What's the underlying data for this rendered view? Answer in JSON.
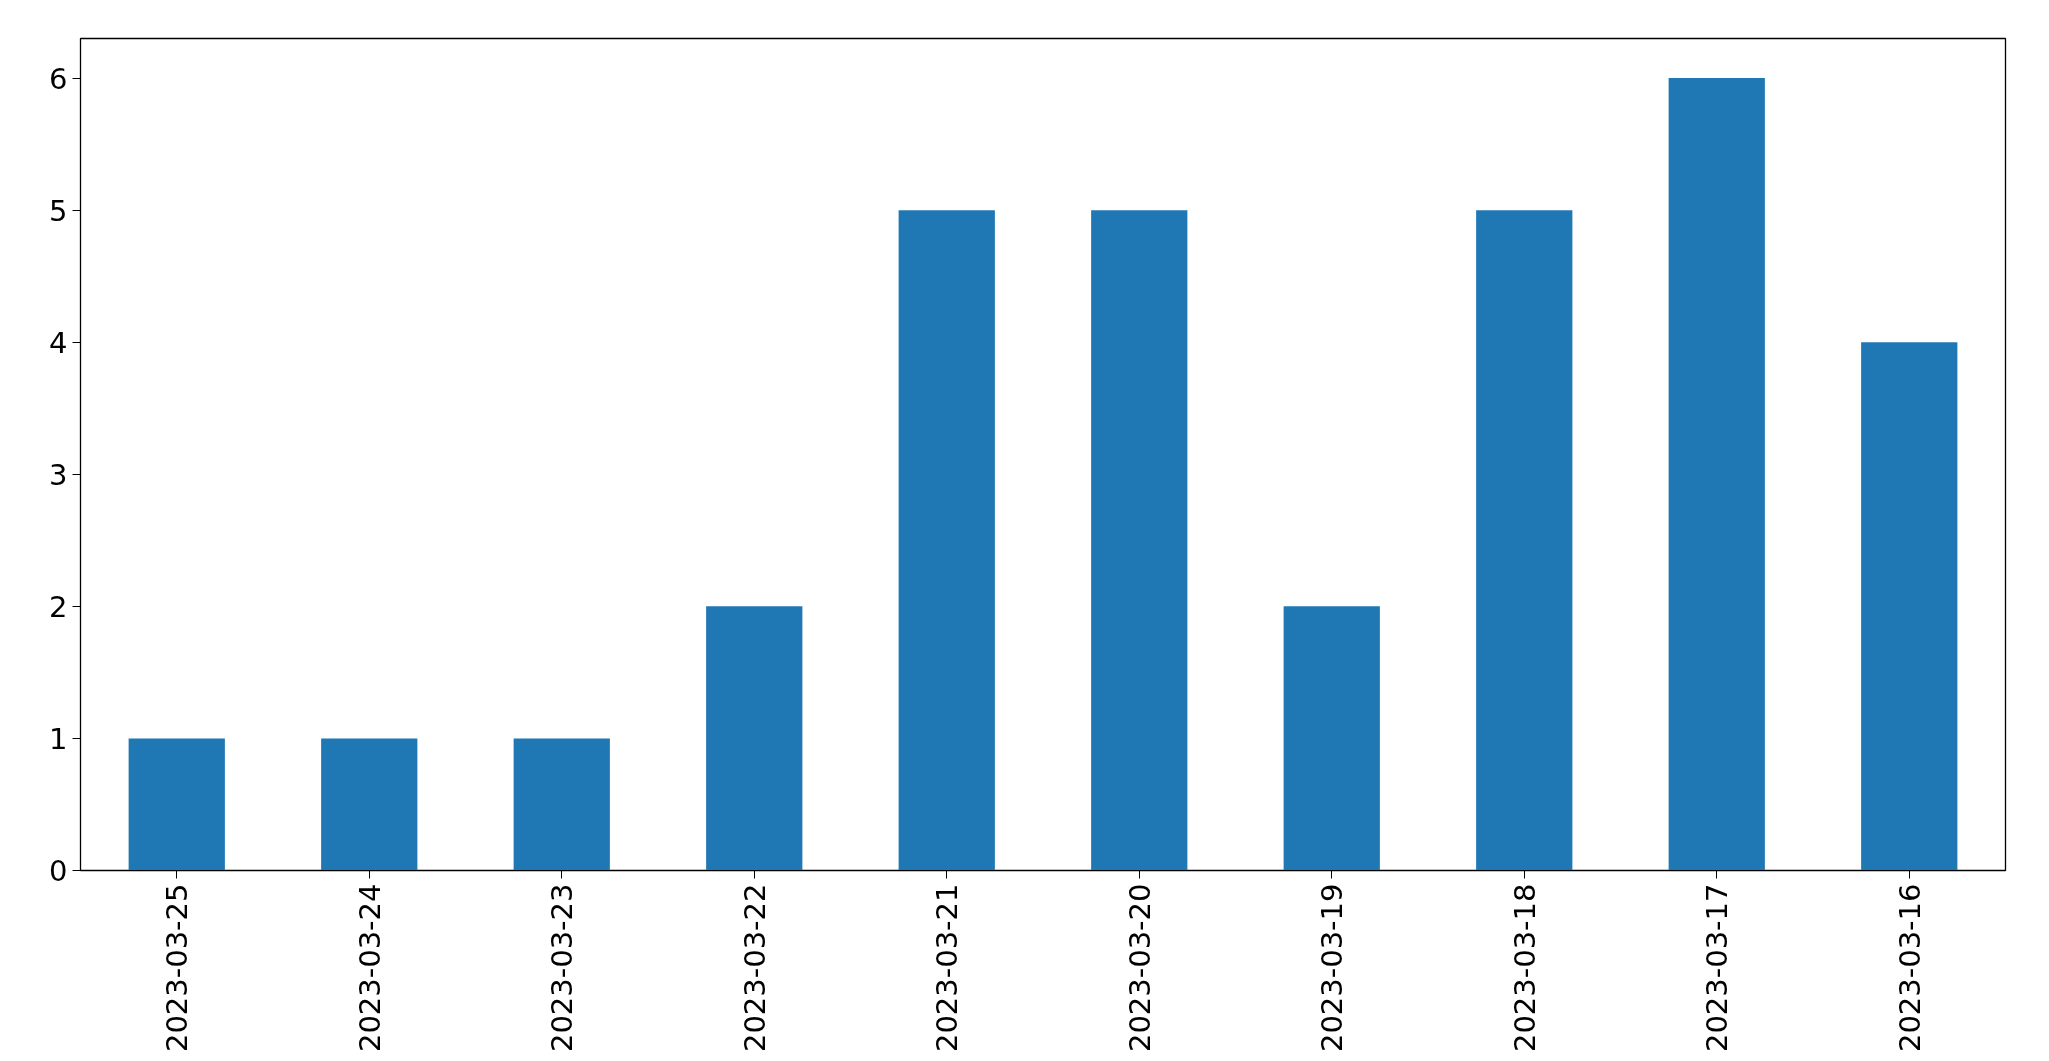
{
  "chart_data": {
    "type": "bar",
    "categories": [
      "2023-03-25",
      "2023-03-24",
      "2023-03-23",
      "2023-03-22",
      "2023-03-21",
      "2023-03-20",
      "2023-03-19",
      "2023-03-18",
      "2023-03-17",
      "2023-03-16"
    ],
    "values": [
      1,
      1,
      1,
      2,
      5,
      5,
      2,
      5,
      6,
      4
    ],
    "color": "#1f77b4",
    "ylim": [
      0,
      6.3
    ],
    "yticks": [
      0,
      1,
      2,
      3,
      4,
      5,
      6
    ]
  }
}
